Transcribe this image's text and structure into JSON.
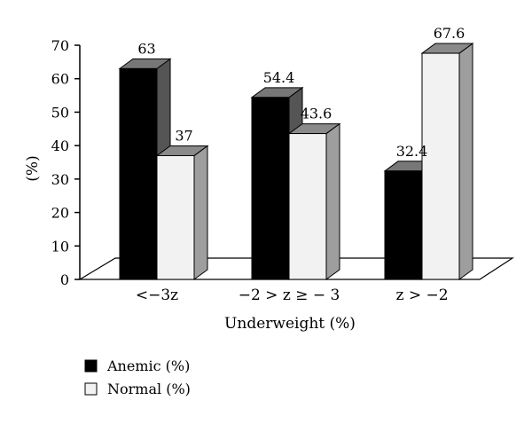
{
  "chart_data": {
    "type": "bar",
    "title": "",
    "xlabel": "Underweight (%)",
    "ylabel": "(%)",
    "ylim": [
      0,
      70
    ],
    "yticks": [
      0,
      10,
      20,
      30,
      40,
      50,
      60,
      70
    ],
    "grid": false,
    "legend_position": "bottom-left",
    "categories": [
      "<−3z",
      "−2 > z ≥ − 3",
      "z > −2"
    ],
    "series": [
      {
        "name": "Anemic (%)",
        "values": [
          63,
          54.4,
          32.4
        ],
        "color": "#000000"
      },
      {
        "name": "Normal (%)",
        "values": [
          37,
          43.6,
          67.6
        ],
        "color": "#f2f2f2"
      }
    ]
  }
}
